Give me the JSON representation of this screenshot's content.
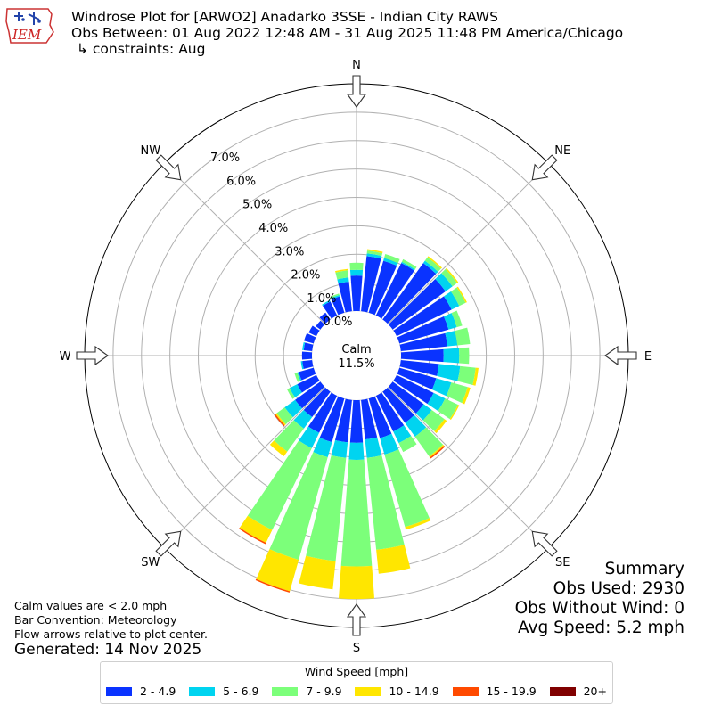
{
  "header": {
    "line1": "Windrose Plot for [ARWO2] Anadarko 3SSE - Indian City RAWS",
    "line2": "Obs Between: 01 Aug 2022 12:48 AM - 31 Aug 2025 11:48 PM America/Chicago",
    "line3": "↳ constraints: Aug"
  },
  "logo": {
    "text": "IEM"
  },
  "notes": {
    "calm": "Calm values are < 2.0 mph",
    "bar": "Bar Convention: Meteorology",
    "flow": "Flow arrows relative to plot center."
  },
  "generated": "Generated: 14 Nov 2025",
  "summary": {
    "title": "Summary",
    "obs_used": "Obs Used: 2930",
    "obs_without_wind": "Obs Without Wind: 0",
    "avg_speed": "Avg Speed: 5.2 mph"
  },
  "legend": {
    "title": "Wind Speed [mph]",
    "items": [
      {
        "label": "2 - 4.9",
        "color": "#0a33ff"
      },
      {
        "label": "5 - 6.9",
        "color": "#00d4f0"
      },
      {
        "label": "7 - 9.9",
        "color": "#7cff7a"
      },
      {
        "label": "10 - 14.9",
        "color": "#ffe600"
      },
      {
        "label": "15 - 19.9",
        "color": "#ff4a00"
      },
      {
        "label": "20+",
        "color": "#800000"
      }
    ]
  },
  "chart_data": {
    "type": "windrose",
    "calm_label": "Calm",
    "calm_value": "11.5%",
    "radial_labels": [
      "0.0%",
      "1.0%",
      "2.0%",
      "3.0%",
      "4.0%",
      "5.0%",
      "6.0%",
      "7.0%"
    ],
    "radial_max": 8.0,
    "directions_compass": [
      "N",
      "NE",
      "E",
      "SE",
      "S",
      "SW",
      "W",
      "NW"
    ],
    "sector_width_deg": 10,
    "bins": [
      "2 - 4.9",
      "5 - 6.9",
      "7 - 9.9",
      "10 - 14.9",
      "15 - 19.9",
      "20+"
    ],
    "colors": [
      "#0a33ff",
      "#00d4f0",
      "#7cff7a",
      "#ffe600",
      "#ff4a00",
      "#800000"
    ],
    "sectors": [
      {
        "dir": 0,
        "values": [
          1.25,
          0.2,
          0.25,
          0,
          0,
          0
        ]
      },
      {
        "dir": 10,
        "values": [
          1.95,
          0.1,
          0.1,
          0.05,
          0,
          0
        ]
      },
      {
        "dir": 20,
        "values": [
          1.9,
          0.1,
          0.15,
          0,
          0,
          0
        ]
      },
      {
        "dir": 30,
        "values": [
          2.05,
          0.05,
          0.1,
          0,
          0,
          0
        ]
      },
      {
        "dir": 40,
        "values": [
          2.45,
          0.1,
          0.15,
          0.05,
          0,
          0
        ]
      },
      {
        "dir": 50,
        "values": [
          2.3,
          0.3,
          0.2,
          0.05,
          0,
          0
        ]
      },
      {
        "dir": 60,
        "values": [
          2.15,
          0.3,
          0.25,
          0.05,
          0,
          0
        ]
      },
      {
        "dir": 70,
        "values": [
          1.8,
          0.3,
          0.2,
          0,
          0,
          0
        ]
      },
      {
        "dir": 80,
        "values": [
          1.65,
          0.35,
          0.45,
          0,
          0,
          0
        ]
      },
      {
        "dir": 90,
        "values": [
          1.5,
          0.55,
          0.35,
          0,
          0,
          0
        ]
      },
      {
        "dir": 100,
        "values": [
          1.35,
          0.75,
          0.55,
          0.1,
          0,
          0
        ]
      },
      {
        "dir": 110,
        "values": [
          1.35,
          0.55,
          0.6,
          0.1,
          0,
          0
        ]
      },
      {
        "dir": 120,
        "values": [
          1.45,
          0.45,
          0.5,
          0.05,
          0,
          0
        ]
      },
      {
        "dir": 130,
        "values": [
          1.35,
          0.35,
          0.55,
          0.1,
          0,
          0
        ]
      },
      {
        "dir": 140,
        "values": [
          1.35,
          0.6,
          0.85,
          0.05,
          0.05,
          0
        ]
      },
      {
        "dir": 150,
        "values": [
          1.4,
          0.45,
          0.35,
          0,
          0,
          0
        ]
      },
      {
        "dir": 160,
        "values": [
          1.45,
          0.6,
          2.65,
          0.1,
          0,
          0
        ]
      },
      {
        "dir": 170,
        "values": [
          1.4,
          0.65,
          3.25,
          0.85,
          0,
          0
        ]
      },
      {
        "dir": 180,
        "values": [
          1.5,
          0.6,
          3.75,
          1.15,
          0,
          0
        ]
      },
      {
        "dir": 190,
        "values": [
          1.5,
          0.55,
          3.65,
          1.0,
          0,
          0
        ]
      },
      {
        "dir": 200,
        "values": [
          1.6,
          0.55,
          3.75,
          1.15,
          0.05,
          0
        ]
      },
      {
        "dir": 210,
        "values": [
          1.45,
          0.6,
          3.2,
          0.5,
          0.05,
          0
        ]
      },
      {
        "dir": 220,
        "values": [
          1.1,
          0.5,
          1.0,
          0.2,
          0,
          0
        ]
      },
      {
        "dir": 230,
        "values": [
          1.1,
          0.45,
          0.35,
          0.05,
          0.05,
          0
        ]
      },
      {
        "dir": 240,
        "values": [
          0.75,
          0.3,
          0.1,
          0,
          0,
          0
        ]
      },
      {
        "dir": 250,
        "values": [
          0.55,
          0.05,
          0.1,
          0,
          0,
          0
        ]
      },
      {
        "dir": 260,
        "values": [
          0.35,
          0.05,
          0,
          0,
          0,
          0
        ]
      },
      {
        "dir": 270,
        "values": [
          0.35,
          0,
          0,
          0,
          0,
          0
        ]
      },
      {
        "dir": 280,
        "values": [
          0.3,
          0.05,
          0,
          0,
          0,
          0
        ]
      },
      {
        "dir": 290,
        "values": [
          0.35,
          0,
          0,
          0,
          0,
          0
        ]
      },
      {
        "dir": 300,
        "values": [
          0.3,
          0,
          0,
          0,
          0,
          0
        ]
      },
      {
        "dir": 310,
        "values": [
          0.2,
          0,
          0,
          0,
          0,
          0
        ]
      },
      {
        "dir": 320,
        "values": [
          0.3,
          0,
          0,
          0,
          0,
          0
        ]
      },
      {
        "dir": 330,
        "values": [
          0.55,
          0.05,
          0,
          0,
          0,
          0
        ]
      },
      {
        "dir": 340,
        "values": [
          0.6,
          0.05,
          0.05,
          0,
          0,
          0
        ]
      },
      {
        "dir": 350,
        "values": [
          1.05,
          0.15,
          0.25,
          0.05,
          0,
          0
        ]
      }
    ]
  }
}
